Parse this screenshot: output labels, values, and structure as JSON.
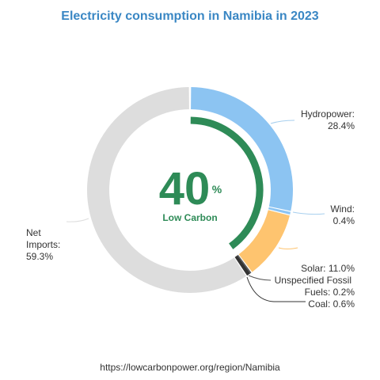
{
  "chart_data": {
    "type": "pie",
    "title": "Electricity consumption in Namibia in 2023",
    "categories": [
      "Hydropower",
      "Wind",
      "Solar",
      "Unspecified Fossil Fuels",
      "Coal",
      "Net Imports"
    ],
    "values": [
      28.4,
      0.4,
      11.0,
      0.2,
      0.6,
      59.3
    ],
    "colors": [
      "#8cc4f2",
      "#8cc4f2",
      "#fec46f",
      "#555555",
      "#333333",
      "#dddddd"
    ],
    "low_carbon_percent": 40,
    "low_carbon_color": "#2e8b57"
  },
  "labels": {
    "hydro_line1": "Hydropower:",
    "hydro_line2": "28.4%",
    "wind_line1": "Wind:",
    "wind_line2": "0.4%",
    "solar": "Solar: 11.0%",
    "fossil_line1": "Unspecified Fossil",
    "fossil_line2": "Fuels: 0.2%",
    "coal": "Coal: 0.6%",
    "imports_line1": "Net",
    "imports_line2": "Imports:",
    "imports_line3": "59.3%"
  },
  "center": {
    "value": "40",
    "unit": "%",
    "caption": "Low Carbon"
  },
  "source": "https://lowcarbonpower.org/region/Namibia"
}
